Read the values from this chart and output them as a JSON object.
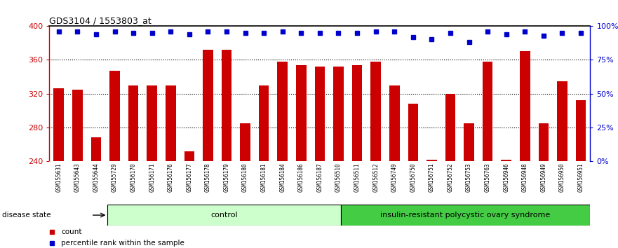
{
  "title": "GDS3104 / 1553803_at",
  "samples": [
    "GSM155631",
    "GSM155643",
    "GSM155644",
    "GSM155729",
    "GSM156170",
    "GSM156171",
    "GSM156176",
    "GSM156177",
    "GSM156178",
    "GSM156179",
    "GSM156180",
    "GSM156181",
    "GSM156184",
    "GSM156186",
    "GSM156187",
    "GSM156510",
    "GSM156511",
    "GSM156512",
    "GSM156749",
    "GSM156750",
    "GSM156751",
    "GSM156752",
    "GSM156753",
    "GSM156763",
    "GSM156946",
    "GSM156948",
    "GSM156949",
    "GSM156950",
    "GSM156951"
  ],
  "counts": [
    326,
    325,
    268,
    347,
    330,
    330,
    330,
    252,
    372,
    372,
    285,
    330,
    358,
    354,
    352,
    352,
    354,
    358,
    330,
    308,
    242,
    320,
    285,
    358,
    242,
    370,
    285,
    335,
    312
  ],
  "percentiles": [
    96,
    96,
    94,
    96,
    95,
    95,
    96,
    94,
    96,
    96,
    95,
    95,
    96,
    95,
    95,
    95,
    95,
    96,
    96,
    92,
    90,
    95,
    88,
    96,
    94,
    96,
    93,
    95,
    95
  ],
  "control_count": 14,
  "disease_label": "insulin-resistant polycystic ovary syndrome",
  "control_label": "control",
  "disease_state_label": "disease state",
  "ylim_left": [
    240,
    400
  ],
  "ylim_right": [
    0,
    100
  ],
  "yticks_left": [
    240,
    280,
    320,
    360,
    400
  ],
  "yticks_right": [
    0,
    25,
    50,
    75,
    100
  ],
  "bar_color": "#CC0000",
  "dot_color": "#0000CC",
  "control_bg": "#CCFFCC",
  "disease_bg": "#44CC44",
  "legend_count_label": "count",
  "legend_pct_label": "percentile rank within the sample",
  "label_bg_color": "#D0D0D0",
  "grid_color": "#000000"
}
